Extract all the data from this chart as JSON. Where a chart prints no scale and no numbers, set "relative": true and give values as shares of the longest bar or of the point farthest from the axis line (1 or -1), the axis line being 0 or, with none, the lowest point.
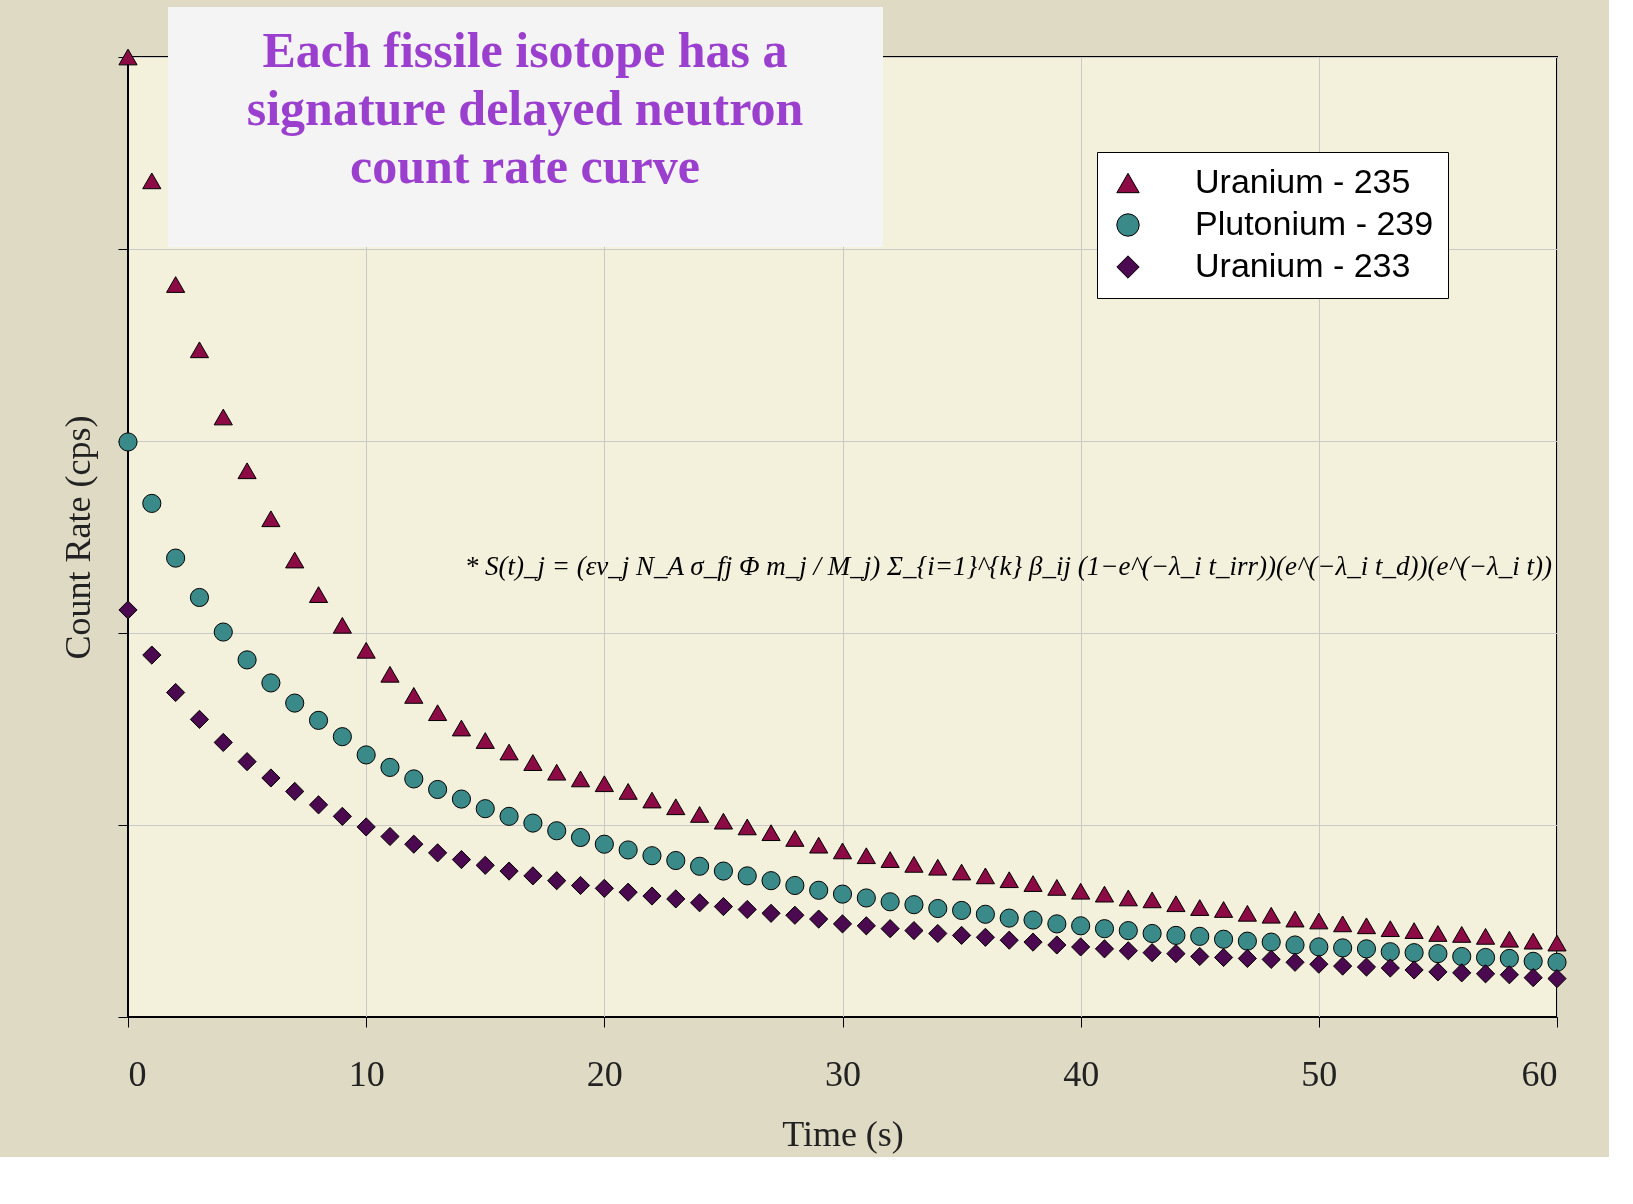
{
  "chart_data": {
    "type": "scatter",
    "title": "Each fissile isotope has a\nsignature delayed neutron\ncount rate curve",
    "xlabel": "Time (s)",
    "ylabel": "Count Rate (cps)",
    "relative": true,
    "xlim": [
      0,
      60
    ],
    "xticks": [
      0,
      10,
      20,
      30,
      40,
      50,
      60
    ],
    "grid": true,
    "legend": "top right",
    "tick_labels": "x",
    "annotations": [
      "* S(t)_j = (εν_j N_A σ_fj Φ m_j / M_j) Σ_{i=1}^{k} β_ij (1−e^(−λ_i t_irr))(e^(−λ_i t_d))(e^(−λ_i t))"
    ],
    "x": [
      0,
      1,
      2,
      3,
      4,
      5,
      6,
      7,
      8,
      9,
      10,
      11,
      12,
      13,
      14,
      15,
      16,
      17,
      18,
      19,
      20,
      21,
      22,
      23,
      24,
      25,
      26,
      27,
      28,
      29,
      30,
      31,
      32,
      33,
      34,
      35,
      36,
      37,
      38,
      39,
      40,
      41,
      42,
      43,
      44,
      45,
      46,
      47,
      48,
      49,
      50,
      51,
      52,
      53,
      54,
      55,
      56,
      57,
      58,
      59,
      60
    ],
    "series": [
      {
        "name": "Uranium - 235",
        "color": "#8c0b45",
        "marker": "triangle",
        "values": [
          1.0,
          0.871,
          0.763,
          0.695,
          0.625,
          0.569,
          0.519,
          0.476,
          0.44,
          0.408,
          0.382,
          0.357,
          0.335,
          0.317,
          0.301,
          0.288,
          0.276,
          0.265,
          0.255,
          0.248,
          0.243,
          0.235,
          0.226,
          0.219,
          0.211,
          0.204,
          0.198,
          0.192,
          0.186,
          0.179,
          0.173,
          0.168,
          0.164,
          0.159,
          0.156,
          0.151,
          0.147,
          0.143,
          0.139,
          0.135,
          0.131,
          0.128,
          0.124,
          0.122,
          0.118,
          0.114,
          0.112,
          0.108,
          0.106,
          0.102,
          0.1,
          0.097,
          0.095,
          0.092,
          0.09,
          0.087,
          0.086,
          0.084,
          0.081,
          0.079,
          0.077
        ]
      },
      {
        "name": "Plutonium - 239",
        "color": "#3b8a8a",
        "marker": "circle",
        "values": [
          0.599,
          0.535,
          0.478,
          0.437,
          0.401,
          0.372,
          0.348,
          0.327,
          0.309,
          0.292,
          0.273,
          0.26,
          0.248,
          0.237,
          0.227,
          0.217,
          0.209,
          0.202,
          0.194,
          0.187,
          0.18,
          0.174,
          0.168,
          0.163,
          0.157,
          0.152,
          0.147,
          0.142,
          0.137,
          0.132,
          0.128,
          0.124,
          0.12,
          0.117,
          0.113,
          0.111,
          0.107,
          0.103,
          0.101,
          0.097,
          0.095,
          0.092,
          0.09,
          0.087,
          0.085,
          0.084,
          0.081,
          0.079,
          0.078,
          0.075,
          0.073,
          0.072,
          0.071,
          0.068,
          0.067,
          0.066,
          0.063,
          0.062,
          0.061,
          0.058,
          0.057
        ]
      },
      {
        "name": "Uranium - 233",
        "color": "#4b0a4f",
        "marker": "diamond",
        "values": [
          0.424,
          0.377,
          0.338,
          0.31,
          0.286,
          0.266,
          0.249,
          0.235,
          0.221,
          0.209,
          0.198,
          0.188,
          0.18,
          0.171,
          0.164,
          0.158,
          0.152,
          0.147,
          0.142,
          0.137,
          0.134,
          0.13,
          0.126,
          0.123,
          0.119,
          0.115,
          0.112,
          0.108,
          0.106,
          0.102,
          0.097,
          0.095,
          0.092,
          0.09,
          0.087,
          0.085,
          0.083,
          0.08,
          0.078,
          0.075,
          0.073,
          0.071,
          0.069,
          0.067,
          0.066,
          0.063,
          0.062,
          0.061,
          0.06,
          0.057,
          0.055,
          0.053,
          0.052,
          0.051,
          0.049,
          0.047,
          0.046,
          0.045,
          0.044,
          0.041,
          0.04
        ]
      }
    ]
  }
}
